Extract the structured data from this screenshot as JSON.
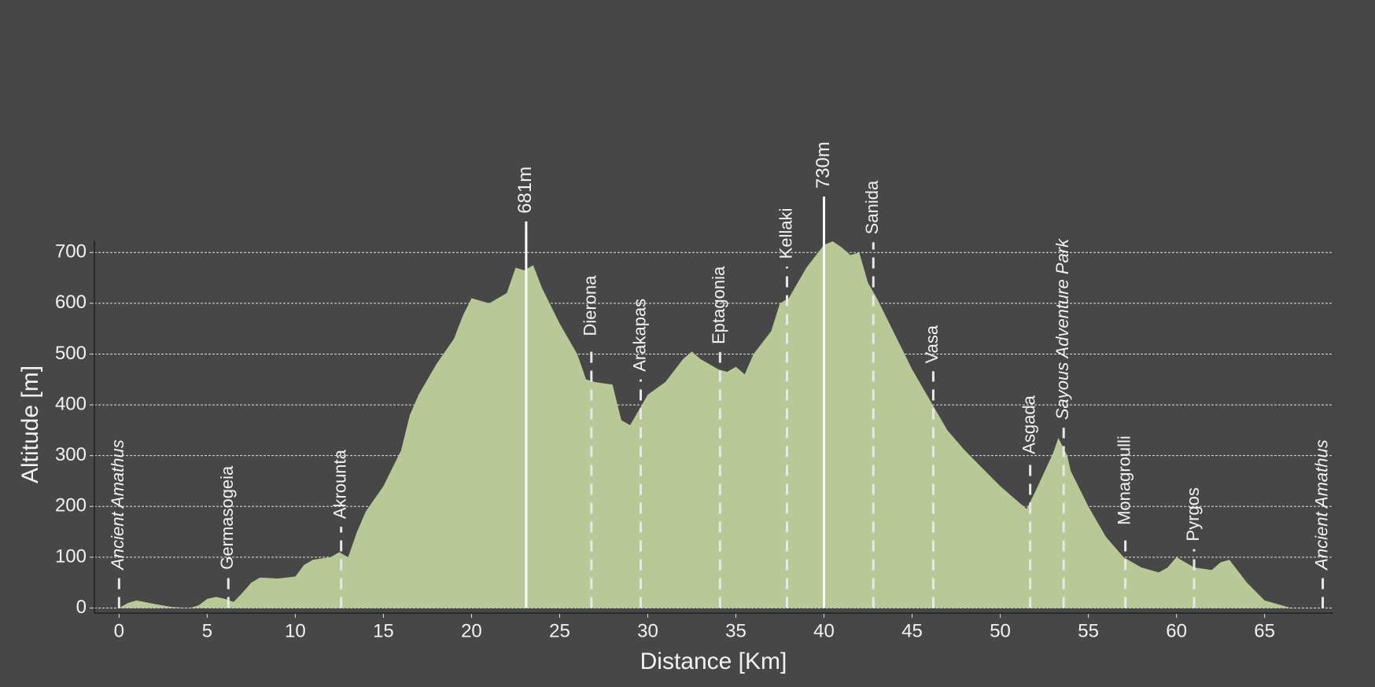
{
  "chart_data": {
    "type": "area",
    "xlabel": "Distance [Km]",
    "ylabel": "Altitude [m]",
    "x": [
      0,
      0.5,
      1,
      2,
      3,
      4,
      4.5,
      5,
      5.5,
      6,
      6.5,
      7,
      7.5,
      8,
      9,
      10,
      10.5,
      11,
      12,
      12.5,
      13,
      13.5,
      14,
      15,
      16,
      16.5,
      17,
      18,
      19,
      19.5,
      20,
      21,
      22,
      22.5,
      23,
      23.5,
      24,
      25,
      26,
      26.5,
      27,
      28,
      28.5,
      29,
      29.5,
      30,
      31,
      32,
      32.5,
      33,
      34,
      34.5,
      35,
      35.5,
      36,
      37,
      37.5,
      38,
      39,
      40,
      40.5,
      41,
      41.5,
      42,
      42.5,
      43,
      44,
      45,
      46,
      46.5,
      47,
      48,
      49,
      50,
      51,
      51.5,
      52,
      53,
      53.3,
      53.8,
      54,
      55,
      56,
      57,
      58,
      59,
      59.5,
      60,
      61,
      62,
      62.5,
      63,
      64,
      65,
      66,
      66.5
    ],
    "values": [
      0,
      10,
      15,
      8,
      2,
      0,
      5,
      18,
      22,
      18,
      12,
      30,
      50,
      60,
      58,
      62,
      85,
      95,
      100,
      110,
      100,
      150,
      190,
      240,
      310,
      380,
      420,
      480,
      530,
      575,
      610,
      600,
      620,
      670,
      665,
      675,
      630,
      560,
      500,
      450,
      445,
      440,
      370,
      360,
      390,
      420,
      445,
      490,
      505,
      490,
      470,
      465,
      475,
      460,
      500,
      545,
      600,
      610,
      670,
      715,
      722,
      710,
      695,
      700,
      640,
      610,
      540,
      470,
      410,
      380,
      350,
      310,
      275,
      240,
      210,
      195,
      230,
      305,
      335,
      300,
      270,
      200,
      140,
      100,
      80,
      70,
      80,
      100,
      80,
      75,
      90,
      95,
      50,
      15,
      5,
      0
    ],
    "color": "#b8c896",
    "xlim": [
      -1.4,
      68.9
    ],
    "ylim": [
      -10,
      722
    ],
    "xticks": [
      0,
      5,
      10,
      15,
      20,
      25,
      30,
      35,
      40,
      45,
      50,
      55,
      60,
      65
    ],
    "yticks": [
      0,
      100,
      200,
      300,
      400,
      500,
      600,
      700
    ],
    "grid": true,
    "peaks": [
      {
        "x": 23.1,
        "value": 681,
        "label": "681m"
      },
      {
        "x": 40.0,
        "value": 730,
        "label": "730m"
      }
    ],
    "waypoints": [
      {
        "name": "Ancient Amathus",
        "x": 0,
        "italic": true
      },
      {
        "name": "Germasogeia",
        "x": 6.2
      },
      {
        "name": "Akrounta",
        "x": 12.6
      },
      {
        "name": "Dierona",
        "x": 26.8
      },
      {
        "name": "Arakapas",
        "x": 29.6
      },
      {
        "name": "Eptagonia",
        "x": 34.1
      },
      {
        "name": "Kellaki",
        "x": 37.9
      },
      {
        "name": "Sanida",
        "x": 42.8
      },
      {
        "name": "Vasa",
        "x": 46.2
      },
      {
        "name": "Asgada",
        "x": 51.7
      },
      {
        "name": "Sayous Adventure Park",
        "x": 53.6,
        "italic": true
      },
      {
        "name": "Monagroulli",
        "x": 57.1
      },
      {
        "name": "Pyrgos",
        "x": 61.0
      },
      {
        "name": "Ancient Amathus",
        "x": 68.3,
        "italic": true
      }
    ]
  }
}
